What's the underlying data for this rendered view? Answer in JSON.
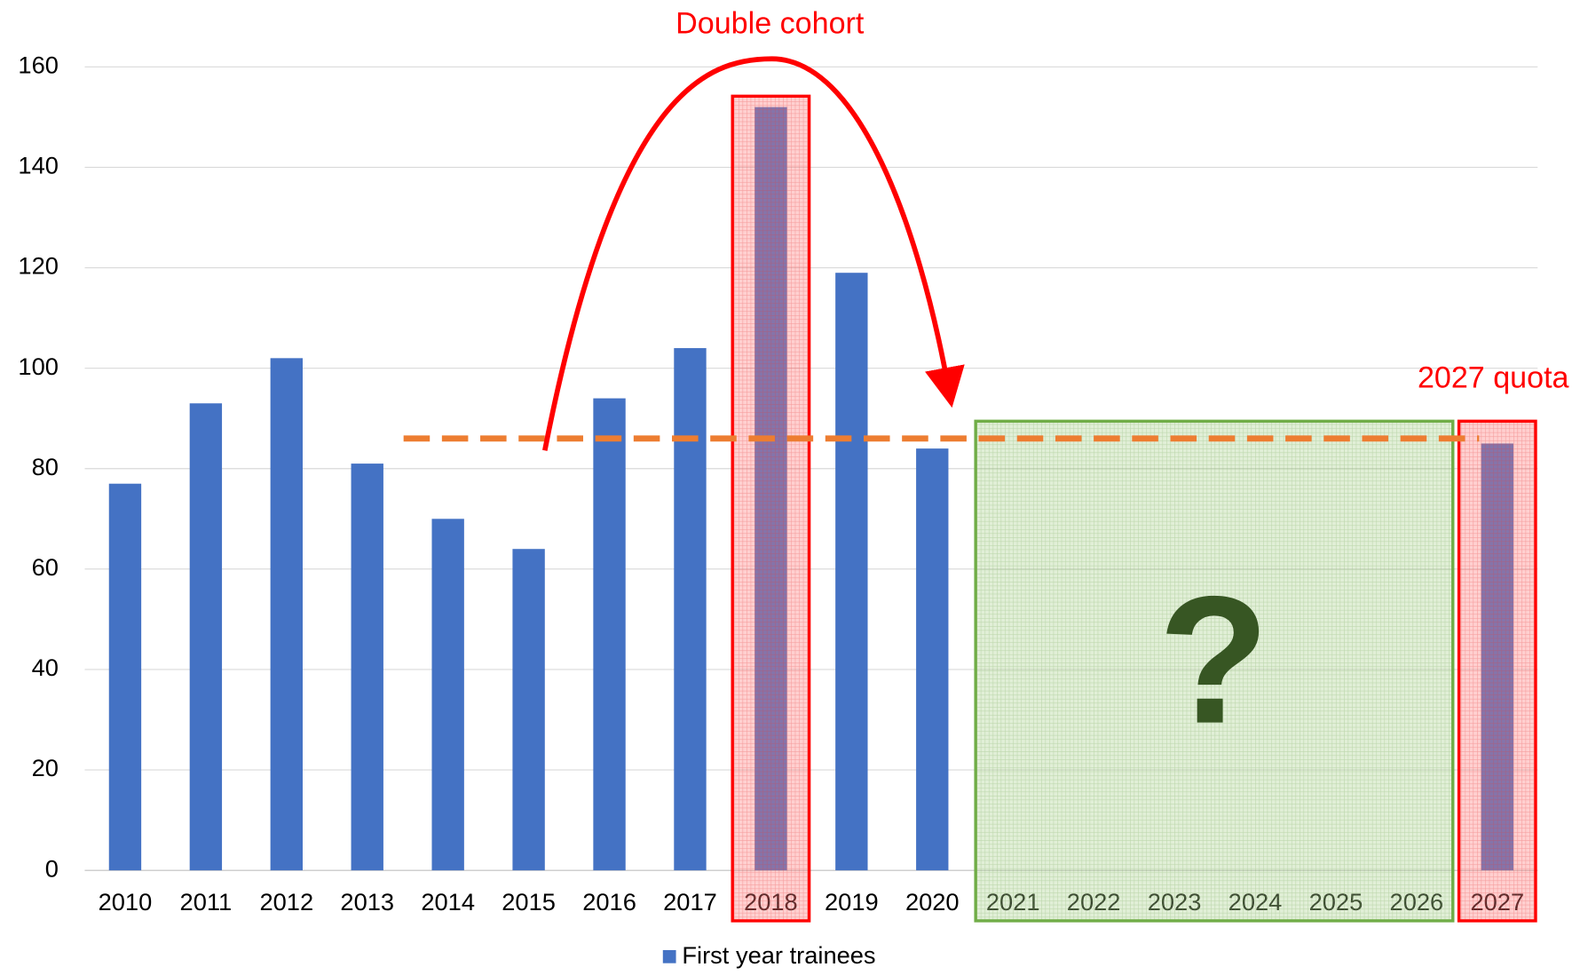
{
  "chart_data": {
    "type": "bar",
    "categories": [
      "2010",
      "2011",
      "2012",
      "2013",
      "2014",
      "2015",
      "2016",
      "2017",
      "2018",
      "2019",
      "2020",
      "2021",
      "2022",
      "2023",
      "2024",
      "2025",
      "2026",
      "2027"
    ],
    "series": [
      {
        "name": "First year trainees",
        "color": "#4472c4",
        "values": [
          77,
          93,
          102,
          81,
          70,
          64,
          94,
          104,
          152,
          119,
          84,
          null,
          null,
          null,
          null,
          null,
          null,
          85
        ]
      }
    ],
    "ylim": [
      0,
      160
    ],
    "yticks": [
      0,
      20,
      40,
      60,
      80,
      100,
      120,
      140,
      160
    ],
    "grid": true,
    "reference_line": {
      "value": 86,
      "label": "2027 quota",
      "color": "#ed7d31"
    },
    "annotations": [
      {
        "text": "Double cohort",
        "color": "#ff0000"
      },
      {
        "text": "?",
        "color": "#375623"
      }
    ],
    "legend": "bottom"
  }
}
